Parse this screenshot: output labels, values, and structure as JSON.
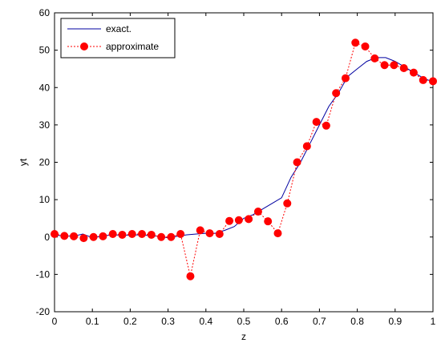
{
  "chart_data": {
    "type": "line",
    "title": "",
    "xlabel": "z",
    "ylabel": "yt",
    "xlim": [
      0,
      1
    ],
    "ylim": [
      -20,
      60
    ],
    "xticks": [
      0,
      0.1,
      0.2,
      0.3,
      0.4,
      0.5,
      0.6,
      0.7,
      0.8,
      0.9,
      1
    ],
    "xtick_labels": [
      "0",
      "0.1",
      "0.2",
      "0.3",
      "0.4",
      "0.5",
      "0.6",
      "0.7",
      "0.8",
      "0.9",
      "1"
    ],
    "yticks": [
      -20,
      -10,
      0,
      10,
      20,
      30,
      40,
      50,
      60
    ],
    "ytick_labels": [
      "-20",
      "-10",
      "0",
      "10",
      "20",
      "30",
      "40",
      "50",
      "60"
    ],
    "grid": false,
    "legend_position": "top-left",
    "series": [
      {
        "name": "exact.",
        "color": "#0000a0",
        "style": "solid",
        "x": [
          0,
          0.025,
          0.05,
          0.075,
          0.1,
          0.125,
          0.15,
          0.175,
          0.2,
          0.225,
          0.25,
          0.275,
          0.3,
          0.325,
          0.35,
          0.375,
          0.4,
          0.425,
          0.45,
          0.475,
          0.5,
          0.525,
          0.55,
          0.575,
          0.6,
          0.625,
          0.65,
          0.675,
          0.7,
          0.725,
          0.75,
          0.775,
          0.8,
          0.825,
          0.85,
          0.875,
          0.9,
          0.925,
          0.95,
          0.975,
          1.0
        ],
        "y": [
          0.5,
          0.3,
          0.2,
          0.8,
          -0.2,
          0.2,
          0.6,
          0.5,
          0.5,
          0.6,
          0.4,
          0.2,
          -0.2,
          0.2,
          0.6,
          0.8,
          1.0,
          1.0,
          1.8,
          2.8,
          5.0,
          6.0,
          7.5,
          9.0,
          10.5,
          16.0,
          20.0,
          25.0,
          30.0,
          35.0,
          38.5,
          43.0,
          45.0,
          47.0,
          48.0,
          48.0,
          47.0,
          45.5,
          44.0,
          42.5,
          41.5
        ]
      },
      {
        "name": "approximate",
        "color": "#ff0000",
        "style": "dotted",
        "marker": "circle",
        "x": [
          0,
          0.026,
          0.051,
          0.077,
          0.103,
          0.128,
          0.154,
          0.179,
          0.205,
          0.231,
          0.256,
          0.282,
          0.308,
          0.333,
          0.359,
          0.385,
          0.41,
          0.436,
          0.462,
          0.487,
          0.513,
          0.538,
          0.564,
          0.59,
          0.615,
          0.641,
          0.667,
          0.692,
          0.718,
          0.744,
          0.769,
          0.795,
          0.821,
          0.846,
          0.872,
          0.897,
          0.923,
          0.949,
          0.974,
          1.0
        ],
        "y": [
          0.8,
          0.3,
          0.2,
          -0.3,
          0.0,
          0.2,
          0.8,
          0.6,
          0.8,
          0.8,
          0.6,
          0.0,
          0.0,
          0.8,
          -10.5,
          1.8,
          1.0,
          0.8,
          4.3,
          4.5,
          4.8,
          6.8,
          4.2,
          1.0,
          9.0,
          20.0,
          24.3,
          30.8,
          29.8,
          38.5,
          42.5,
          52.0,
          51.0,
          47.8,
          46.0,
          46.0,
          45.2,
          44.0,
          42.0,
          41.7
        ]
      }
    ]
  }
}
